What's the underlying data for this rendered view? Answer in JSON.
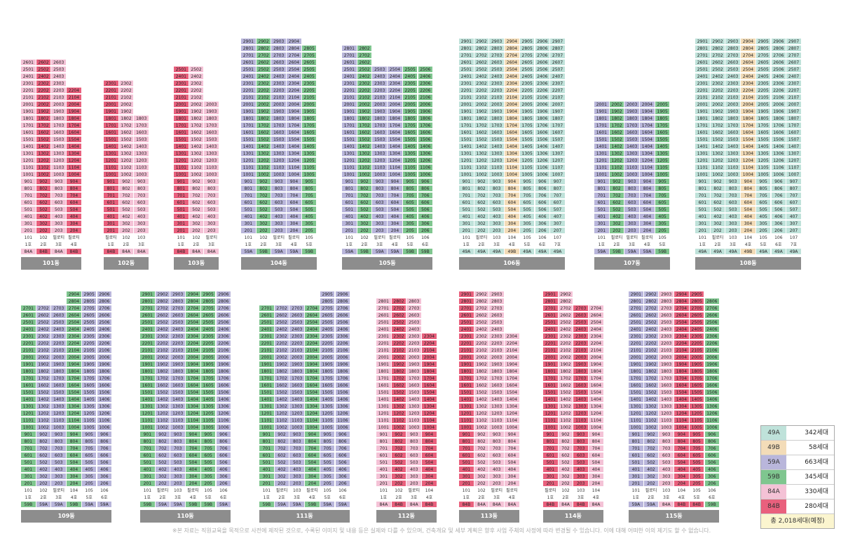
{
  "note": "※본 자료는 직원교육을 목적으로 사전에 제작된 것으로, 수록된 이미지 및 내용 등은 실제와 다를 수 있으며, 건축개요 및 세부 계획은 향후 사업 주체의 사정에 따라 변경될 수 있습니다. 이에 대해 어떠한 이의 제기도 할 수 없습니다.",
  "colors": {
    "49A": "#bfe2da",
    "49B": "#f3dcb8",
    "59A": "#b9b6db",
    "59B": "#7fc68f",
    "84A": "#f4c2d6",
    "84B": "#e9607d"
  },
  "pilotis_label": "필로티",
  "legend": {
    "items": [
      {
        "type": "49A",
        "count": "342세대"
      },
      {
        "type": "49B",
        "count": "58세대"
      },
      {
        "type": "59A",
        "count": "663세대"
      },
      {
        "type": "59B",
        "count": "345세대"
      },
      {
        "type": "84A",
        "count": "330세대"
      },
      {
        "type": "84B",
        "count": "280세대"
      }
    ],
    "total": "총 2,018세대(예정)"
  },
  "buildings": [
    {
      "name": "101동",
      "lines": [
        {
          "ho": "1호",
          "type": "84A",
          "top": 26
        },
        {
          "ho": "2호",
          "type": "84B",
          "top": 26
        },
        {
          "ho": "3호",
          "type": "84A",
          "top": 26,
          "pil": true
        },
        {
          "ho": "4호",
          "type": "84B",
          "top": 22,
          "pil": true
        }
      ]
    },
    {
      "name": "102동",
      "lines": [
        {
          "ho": "1호",
          "type": "84B",
          "top": 23,
          "pil": true
        },
        {
          "ho": "2호",
          "type": "84A",
          "top": 23
        },
        {
          "ho": "3호",
          "type": "84A",
          "top": 18
        }
      ]
    },
    {
      "name": "103동",
      "lines": [
        {
          "ho": "1호",
          "type": "84B",
          "top": 25
        },
        {
          "ho": "2호",
          "type": "84A",
          "top": 25
        },
        {
          "ho": "3호",
          "type": "84A",
          "top": 20,
          "pil": true
        }
      ]
    },
    {
      "name": "104동",
      "lines": [
        {
          "ho": "1호",
          "type": "59A",
          "top": 29
        },
        {
          "ho": "2호",
          "type": "59B",
          "top": 29
        },
        {
          "ho": "3호",
          "type": "59A",
          "top": 29,
          "pil": true
        },
        {
          "ho": "4호",
          "type": "59A",
          "top": 29,
          "pil": true
        },
        {
          "ho": "5호",
          "type": "59B",
          "top": 28
        }
      ]
    },
    {
      "name": "105동",
      "lines": [
        {
          "ho": "1호",
          "type": "59A",
          "top": 28
        },
        {
          "ho": "2호",
          "type": "59B",
          "top": 28
        },
        {
          "ho": "3호",
          "type": "59A",
          "top": 25,
          "pil": true
        },
        {
          "ho": "4호",
          "type": "59A",
          "top": 25,
          "pil": true
        },
        {
          "ho": "5호",
          "type": "59B",
          "top": 25
        },
        {
          "ho": "6호",
          "type": "59B",
          "top": 25
        }
      ]
    },
    {
      "name": "106동",
      "lines": [
        {
          "ho": "1호",
          "type": "49A",
          "top": 29
        },
        {
          "ho": "2호",
          "type": "49A",
          "top": 29,
          "pil": true
        },
        {
          "ho": "3호",
          "type": "49A",
          "top": 29
        },
        {
          "ho": "4호",
          "type": "49B",
          "top": 29
        },
        {
          "ho": "5호",
          "type": "49A",
          "top": 29
        },
        {
          "ho": "6호",
          "type": "49A",
          "top": 29
        },
        {
          "ho": "7호",
          "type": "49A",
          "top": 29
        }
      ]
    },
    {
      "name": "107동",
      "lines": [
        {
          "ho": "1호",
          "type": "59A",
          "top": 20
        },
        {
          "ho": "2호",
          "type": "59B",
          "top": 20,
          "pil": true
        },
        {
          "ho": "3호",
          "type": "59A",
          "top": 20,
          "pil": true
        },
        {
          "ho": "4호",
          "type": "59A",
          "top": 20,
          "pil": true
        },
        {
          "ho": "5호",
          "type": "59B",
          "top": 20
        }
      ]
    },
    {
      "name": "108동",
      "lines": [
        {
          "ho": "1호",
          "type": "49A",
          "top": 29
        },
        {
          "ho": "2호",
          "type": "49A",
          "top": 29,
          "pil": true
        },
        {
          "ho": "3호",
          "type": "49A",
          "top": 29
        },
        {
          "ho": "4호",
          "type": "49B",
          "top": 29
        },
        {
          "ho": "5호",
          "type": "49A",
          "top": 29
        },
        {
          "ho": "6호",
          "type": "49A",
          "top": 29
        },
        {
          "ho": "7호",
          "type": "49A",
          "top": 29
        }
      ]
    },
    {
      "name": "109동",
      "lines": [
        {
          "ho": "1호",
          "type": "59B",
          "top": 27
        },
        {
          "ho": "2호",
          "type": "59A",
          "top": 27
        },
        {
          "ho": "3호",
          "type": "59A",
          "top": 27,
          "pil": true
        },
        {
          "ho": "4호",
          "type": "59B",
          "top": 29
        },
        {
          "ho": "5호",
          "type": "59A",
          "top": 29
        },
        {
          "ho": "6호",
          "type": "59A",
          "top": 29
        }
      ]
    },
    {
      "name": "110동",
      "lines": [
        {
          "ho": "1호",
          "type": "59B",
          "top": 29
        },
        {
          "ho": "2호",
          "type": "59A",
          "top": 29,
          "pil": true
        },
        {
          "ho": "3호",
          "type": "59A",
          "top": 29
        },
        {
          "ho": "4호",
          "type": "59B",
          "top": 29,
          "pil": true
        },
        {
          "ho": "5호",
          "type": "59B",
          "top": 29
        },
        {
          "ho": "6호",
          "type": "59A",
          "top": 29
        }
      ]
    },
    {
      "name": "111동",
      "lines": [
        {
          "ho": "1호",
          "type": "59B",
          "top": 27
        },
        {
          "ho": "2호",
          "type": "59A",
          "top": 27,
          "pil": true
        },
        {
          "ho": "3호",
          "type": "59A",
          "top": 27
        },
        {
          "ho": "4호",
          "type": "59B",
          "top": 27,
          "pil": true
        },
        {
          "ho": "5호",
          "type": "59A",
          "top": 29
        },
        {
          "ho": "6호",
          "type": "59A",
          "top": 29
        }
      ]
    },
    {
      "name": "112동",
      "lines": [
        {
          "ho": "1호",
          "type": "84A",
          "top": 28
        },
        {
          "ho": "2호",
          "type": "84B",
          "top": 28
        },
        {
          "ho": "3호",
          "type": "84A",
          "top": 28,
          "pil": true
        },
        {
          "ho": "4호",
          "type": "84B",
          "top": 23
        }
      ]
    },
    {
      "name": "113동",
      "lines": [
        {
          "ho": "1호",
          "type": "84B",
          "top": 29
        },
        {
          "ho": "2호",
          "type": "84A",
          "top": 29
        },
        {
          "ho": "3호",
          "type": "84A",
          "top": 29,
          "pil": true
        },
        {
          "ho": "4호",
          "type": "84A",
          "top": 23,
          "pil": true
        }
      ]
    },
    {
      "name": "114동",
      "lines": [
        {
          "ho": "1호",
          "type": "84B",
          "top": 29,
          "pil": true
        },
        {
          "ho": "2호",
          "type": "84A",
          "top": 29
        },
        {
          "ho": "3호",
          "type": "84B",
          "top": 27
        },
        {
          "ho": "4호",
          "type": "84A",
          "top": 27
        }
      ]
    },
    {
      "name": "115동",
      "lines": [
        {
          "ho": "1호",
          "type": "59A",
          "top": 29
        },
        {
          "ho": "2호",
          "type": "59A",
          "top": 29,
          "pil": true
        },
        {
          "ho": "3호",
          "type": "84A",
          "top": 29
        },
        {
          "ho": "4호",
          "type": "84B",
          "top": 29
        },
        {
          "ho": "5호",
          "type": "84B",
          "top": 29
        },
        {
          "ho": "6호",
          "type": "59B",
          "top": 28
        }
      ]
    }
  ]
}
